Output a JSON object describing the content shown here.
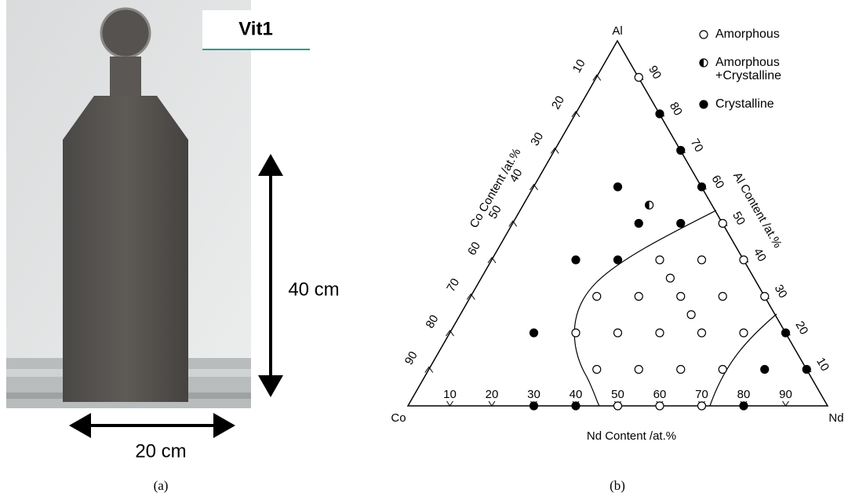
{
  "panel_a": {
    "label": "Vit1",
    "height_label": "40 cm",
    "width_label": "20 cm",
    "caption": "(a)"
  },
  "panel_b": {
    "caption": "(b)",
    "vertices": {
      "top": "Al",
      "left": "Co",
      "right": "Nd"
    },
    "axes": {
      "co": {
        "title": "Co Content /at.%",
        "ticks": [
          10,
          20,
          30,
          40,
          50,
          60,
          70,
          80,
          90
        ]
      },
      "al": {
        "title": "Al Content /at.%",
        "ticks": [
          90,
          80,
          70,
          60,
          50,
          40,
          30,
          20,
          10
        ]
      },
      "nd": {
        "title": "Nd Content /at.%",
        "ticks": [
          10,
          20,
          30,
          40,
          50,
          60,
          70,
          80,
          90
        ]
      }
    },
    "legend": [
      {
        "lines": [
          "Amorphous"
        ],
        "marker": "open"
      },
      {
        "lines": [
          "Amorphous",
          "+Crystalline"
        ],
        "marker": "half"
      },
      {
        "lines": [
          "Crystalline"
        ],
        "marker": "filled"
      }
    ],
    "points": [
      {
        "nd": 10,
        "al": 90,
        "marker": "open"
      },
      {
        "nd": 20,
        "al": 80,
        "marker": "filled"
      },
      {
        "nd": 30,
        "al": 70,
        "marker": "filled"
      },
      {
        "nd": 40,
        "al": 60,
        "marker": "filled"
      },
      {
        "nd": 50,
        "al": 50,
        "marker": "open"
      },
      {
        "nd": 60,
        "al": 40,
        "marker": "open"
      },
      {
        "nd": 70,
        "al": 30,
        "marker": "open"
      },
      {
        "nd": 80,
        "al": 20,
        "marker": "filled"
      },
      {
        "nd": 90,
        "al": 10,
        "marker": "filled"
      },
      {
        "nd": 30,
        "al": 0,
        "marker": "filled"
      },
      {
        "nd": 40,
        "al": 0,
        "marker": "filled"
      },
      {
        "nd": 50,
        "al": 0,
        "marker": "open"
      },
      {
        "nd": 60,
        "al": 0,
        "marker": "open"
      },
      {
        "nd": 70,
        "al": 0,
        "marker": "open"
      },
      {
        "nd": 80,
        "al": 0,
        "marker": "filled"
      },
      {
        "nd": 20,
        "al": 60,
        "marker": "filled"
      },
      {
        "nd": 30,
        "al": 55,
        "marker": "half"
      },
      {
        "nd": 30,
        "al": 50,
        "marker": "filled"
      },
      {
        "nd": 40,
        "al": 50,
        "marker": "filled"
      },
      {
        "nd": 20,
        "al": 40,
        "marker": "filled"
      },
      {
        "nd": 30,
        "al": 40,
        "marker": "filled"
      },
      {
        "nd": 40,
        "al": 40,
        "marker": "open"
      },
      {
        "nd": 50,
        "al": 40,
        "marker": "open"
      },
      {
        "nd": 45,
        "al": 35,
        "marker": "open"
      },
      {
        "nd": 30,
        "al": 30,
        "marker": "open"
      },
      {
        "nd": 40,
        "al": 30,
        "marker": "open"
      },
      {
        "nd": 50,
        "al": 30,
        "marker": "open"
      },
      {
        "nd": 60,
        "al": 30,
        "marker": "open"
      },
      {
        "nd": 55,
        "al": 25,
        "marker": "open"
      },
      {
        "nd": 20,
        "al": 20,
        "marker": "filled"
      },
      {
        "nd": 30,
        "al": 20,
        "marker": "open"
      },
      {
        "nd": 40,
        "al": 20,
        "marker": "open"
      },
      {
        "nd": 50,
        "al": 20,
        "marker": "open"
      },
      {
        "nd": 60,
        "al": 20,
        "marker": "open"
      },
      {
        "nd": 70,
        "al": 20,
        "marker": "open"
      },
      {
        "nd": 40,
        "al": 10,
        "marker": "open"
      },
      {
        "nd": 50,
        "al": 10,
        "marker": "open"
      },
      {
        "nd": 60,
        "al": 10,
        "marker": "open"
      },
      {
        "nd": 70,
        "al": 10,
        "marker": "open"
      },
      {
        "nd": 80,
        "al": 10,
        "marker": "filled"
      }
    ]
  }
}
